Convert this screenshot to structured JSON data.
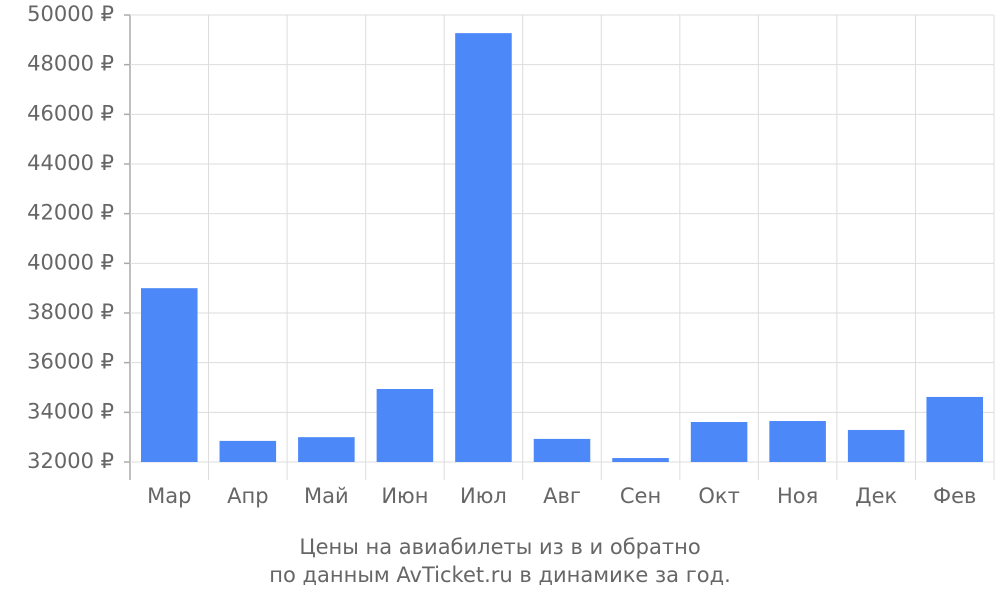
{
  "chart_data": {
    "type": "bar",
    "title": "Цены на авиабилеты из  в  и обратно",
    "subtitle": "по данным AvTicket.ru в динамике за год.",
    "categories": [
      "Мар",
      "Апр",
      "Май",
      "Июн",
      "Июл",
      "Авг",
      "Сен",
      "Окт",
      "Ноя",
      "Дек",
      "Фев"
    ],
    "values": [
      39000,
      32850,
      33000,
      34940,
      49270,
      32930,
      32160,
      33610,
      33650,
      33290,
      34620
    ],
    "color": "#4d88f9",
    "ylim": [
      32000,
      50000
    ],
    "yticks": [
      {
        "value": 32000,
        "label": "32000 ₽"
      },
      {
        "value": 34000,
        "label": "34000 ₽"
      },
      {
        "value": 36000,
        "label": "36000 ₽"
      },
      {
        "value": 38000,
        "label": "38000 ₽"
      },
      {
        "value": 40000,
        "label": "40000 ₽"
      },
      {
        "value": 42000,
        "label": "42000 ₽"
      },
      {
        "value": 44000,
        "label": "44000 ₽"
      },
      {
        "value": 46000,
        "label": "46000 ₽"
      },
      {
        "value": 48000,
        "label": "48000 ₽"
      },
      {
        "value": 50000,
        "label": "50000 ₽"
      }
    ],
    "grid": true
  }
}
